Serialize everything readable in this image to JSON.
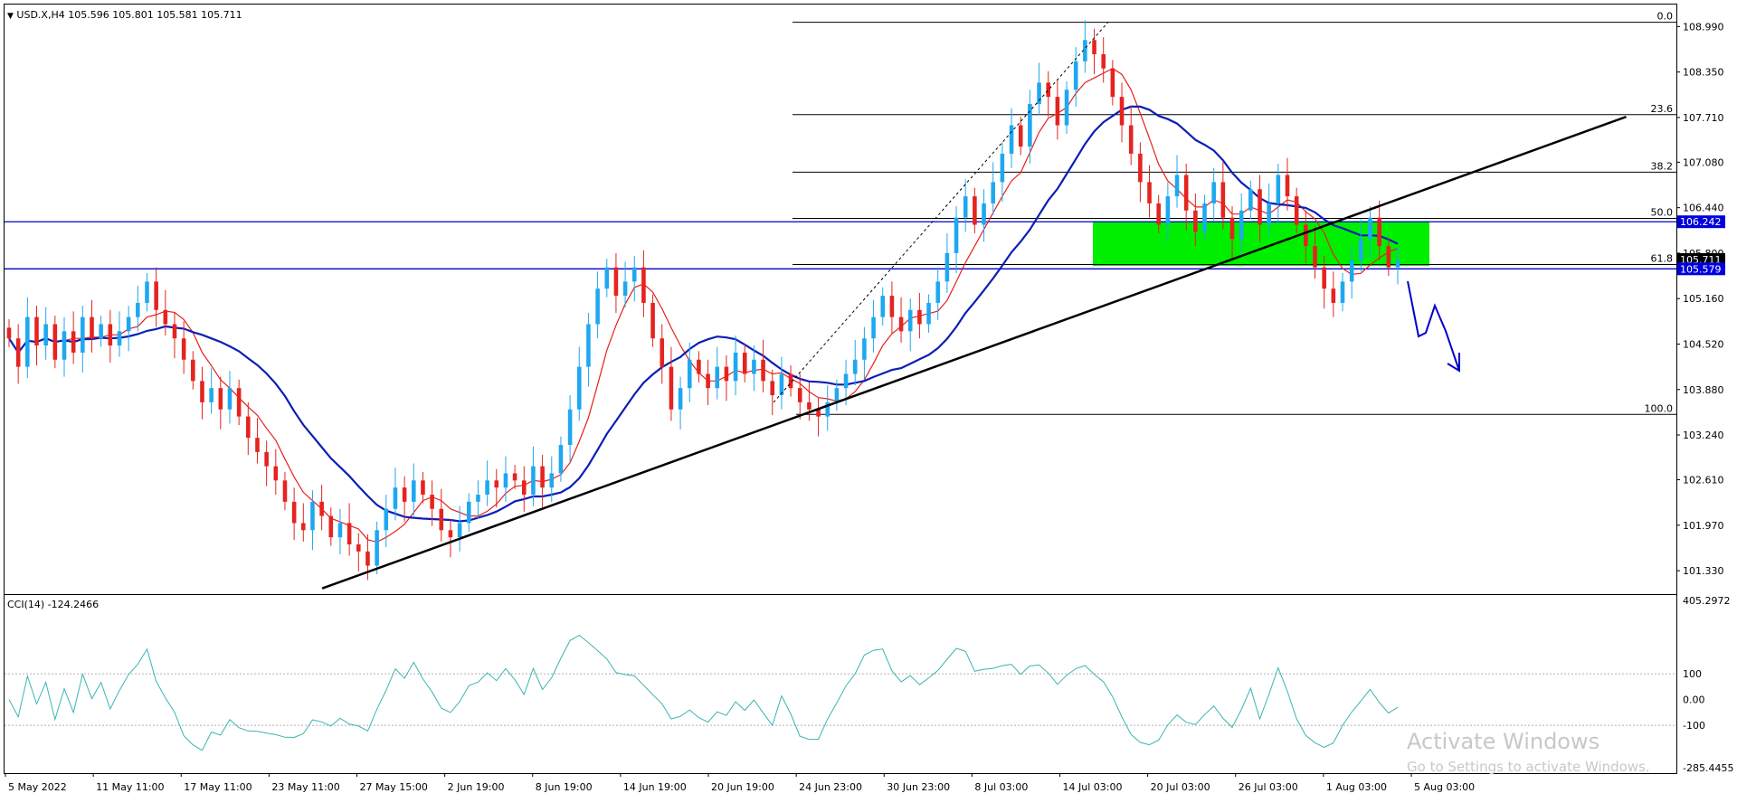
{
  "header": {
    "symbol_line": "USD.X,H4  105.596 105.801 105.581 105.711",
    "cci_line": "CCI(14) -124.2466"
  },
  "watermark": {
    "title": "Activate Windows",
    "subtitle": "Go to Settings to activate Windows."
  },
  "chart_data": {
    "type": "candlestick",
    "price_scale": [
      "108.990",
      "108.350",
      "107.710",
      "107.080",
      "106.440",
      "105.800",
      "105.160",
      "104.520",
      "103.880",
      "103.240",
      "102.610",
      "101.970",
      "101.330"
    ],
    "price_range": [
      101.0,
      109.3
    ],
    "time_labels": [
      "5 May 2022",
      "11 May 11:00",
      "17 May 11:00",
      "23 May 11:00",
      "27 May 15:00",
      "2 Jun 19:00",
      "8 Jun 19:00",
      "14 Jun 19:00",
      "20 Jun 19:00",
      "24 Jun 23:00",
      "30 Jun 23:00",
      "8 Jul 03:00",
      "14 Jul 03:00",
      "20 Jul 03:00",
      "26 Jul 03:00",
      "1 Aug 03:00",
      "5 Aug 03:00"
    ],
    "price_tags": [
      {
        "value": 106.242,
        "label": "106.242",
        "bg": "#0000dd",
        "fg": "#ffffff"
      },
      {
        "value": 105.711,
        "label": "105.711",
        "bg": "#000000",
        "fg": "#ffffff"
      },
      {
        "value": 105.579,
        "label": "105.579",
        "bg": "#0000dd",
        "fg": "#ffffff"
      }
    ],
    "fibonacci": {
      "levels": [
        {
          "label": "0.0",
          "value": 109.05
        },
        {
          "label": "23.6",
          "value": 107.75
        },
        {
          "label": "38.2",
          "value": 106.94
        },
        {
          "label": "50.0",
          "value": 106.29
        },
        {
          "label": "61.8",
          "value": 105.64
        },
        {
          "label": "100.0",
          "value": 103.53
        }
      ],
      "color": "#000000"
    },
    "horizontal_lines": [
      {
        "value": 106.242,
        "color": "#0000cc"
      },
      {
        "value": 105.579,
        "color": "#0000cc"
      }
    ],
    "zone": {
      "top": 106.25,
      "bottom": 105.62,
      "color": "#00ee00"
    },
    "trendline": {
      "from": [
        0.19,
        101.08
      ],
      "to": [
        0.97,
        107.72
      ],
      "color": "#000000"
    },
    "dashed_line": {
      "from": [
        0.46,
        103.7
      ],
      "to": [
        0.66,
        109.05
      ]
    },
    "forecast_arrow_color": "#0000cc",
    "close_series": [
      104.6,
      104.2,
      104.9,
      104.5,
      104.8,
      104.3,
      104.7,
      104.4,
      104.9,
      104.6,
      104.8,
      104.5,
      104.7,
      104.9,
      105.1,
      105.4,
      105.0,
      104.8,
      104.6,
      104.3,
      104.0,
      103.7,
      103.9,
      103.6,
      103.9,
      103.5,
      103.2,
      103.0,
      102.8,
      102.6,
      102.3,
      102.0,
      101.9,
      102.3,
      102.1,
      101.8,
      102.0,
      101.7,
      101.6,
      101.4,
      101.9,
      102.2,
      102.5,
      102.3,
      102.6,
      102.4,
      102.2,
      101.9,
      101.8,
      102.0,
      102.3,
      102.4,
      102.6,
      102.5,
      102.7,
      102.6,
      102.4,
      102.8,
      102.5,
      102.7,
      103.1,
      103.6,
      104.2,
      104.8,
      105.3,
      105.6,
      105.2,
      105.4,
      105.6,
      105.1,
      104.6,
      104.2,
      103.6,
      103.9,
      104.3,
      104.1,
      103.9,
      104.2,
      104.0,
      104.4,
      104.1,
      104.3,
      104.0,
      103.8,
      104.1,
      103.9,
      103.7,
      103.6,
      103.5,
      103.7,
      103.9,
      104.1,
      104.3,
      104.6,
      104.9,
      105.2,
      104.9,
      104.7,
      105.0,
      104.8,
      105.1,
      105.4,
      105.8,
      106.3,
      106.6,
      106.2,
      106.5,
      106.8,
      107.2,
      107.6,
      107.3,
      107.9,
      108.2,
      108.0,
      107.6,
      108.1,
      108.5,
      108.8,
      108.6,
      108.4,
      108.0,
      107.6,
      107.2,
      106.8,
      106.5,
      106.2,
      106.6,
      106.9,
      106.4,
      106.1,
      106.5,
      106.8,
      106.3,
      106.0,
      106.4,
      106.7,
      106.2,
      106.5,
      106.9,
      106.6,
      106.2,
      105.9,
      105.6,
      105.3,
      105.1,
      105.4,
      105.7,
      106.0,
      106.3,
      105.9,
      105.6,
      105.7
    ]
  }
}
